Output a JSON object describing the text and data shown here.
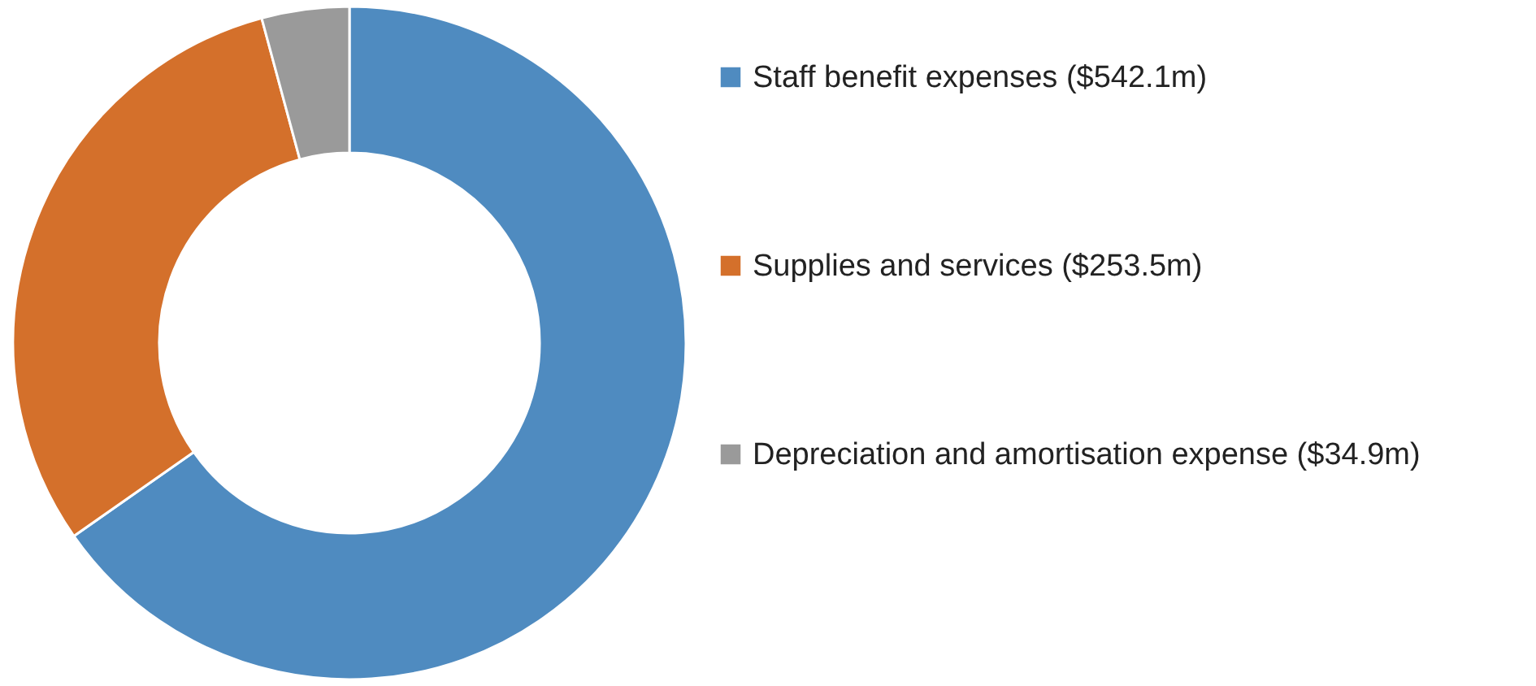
{
  "chart_data": {
    "type": "donut",
    "categories": [
      "Staff benefit expenses ($542.1m)",
      "Supplies and services ($253.5m)",
      "Depreciation and amortisation expense ($34.9m)"
    ],
    "values": [
      542.1,
      253.5,
      34.9
    ],
    "colors": [
      "#4f8bc0",
      "#d4702b",
      "#9a9a9a"
    ],
    "legend": "right"
  }
}
